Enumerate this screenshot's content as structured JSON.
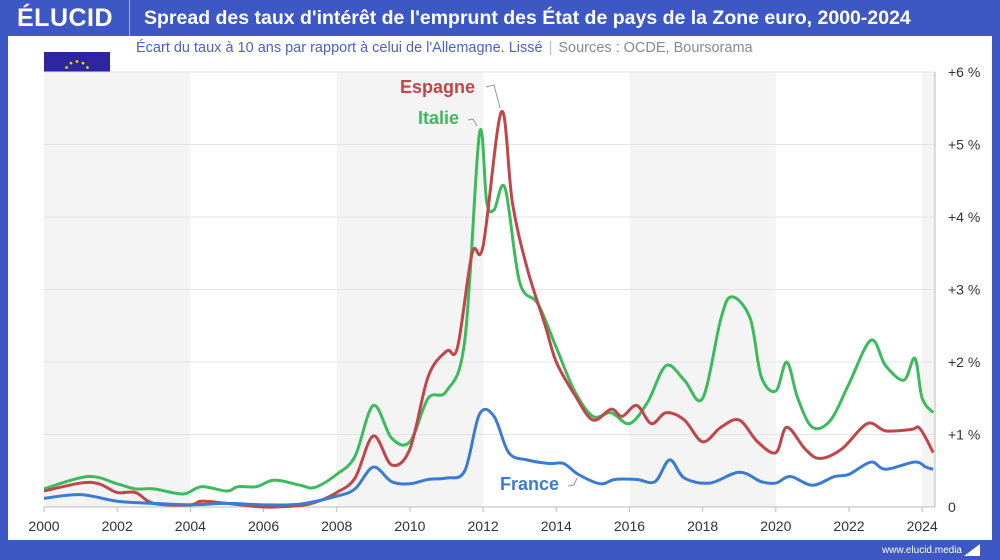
{
  "header": {
    "logo": "ÉLUCID",
    "title": "Spread des taux d'intérêt de l'emprunt des État de pays de la Zone euro, 2000-2024"
  },
  "subtitle": {
    "text": "Écart du taux à 10 ans par rapport à celui de l'Allemagne. Lissé",
    "sources": "Sources : OCDE, Boursorama"
  },
  "footer": {
    "url": "www.elucid.media"
  },
  "flag_icon": "eu-flag",
  "chart_data": {
    "type": "line",
    "xlim": [
      2000,
      2024.35
    ],
    "ylim": [
      0,
      6
    ],
    "x_ticks": [
      "2000",
      "2002",
      "2004",
      "2006",
      "2008",
      "2010",
      "2012",
      "2014",
      "2016",
      "2018",
      "2020",
      "2022",
      "2024"
    ],
    "y_ticks": [
      {
        "v": 0,
        "label": "0"
      },
      {
        "v": 1,
        "label": "+1 %"
      },
      {
        "v": 2,
        "label": "+2 %"
      },
      {
        "v": 3,
        "label": "+3 %"
      },
      {
        "v": 4,
        "label": "+4 %"
      },
      {
        "v": 5,
        "label": "+5 %"
      },
      {
        "v": 6,
        "label": "+6 %"
      }
    ],
    "grid": true,
    "alternating_bands": true,
    "series": [
      {
        "name": "Italie",
        "color": "#3dbb5c",
        "points": [
          [
            2000,
            0.25
          ],
          [
            2001.2,
            0.42
          ],
          [
            2002,
            0.32
          ],
          [
            2002.5,
            0.25
          ],
          [
            2003,
            0.25
          ],
          [
            2003.8,
            0.18
          ],
          [
            2004.3,
            0.28
          ],
          [
            2005,
            0.22
          ],
          [
            2005.3,
            0.28
          ],
          [
            2005.8,
            0.28
          ],
          [
            2006.3,
            0.37
          ],
          [
            2007,
            0.3
          ],
          [
            2007.4,
            0.27
          ],
          [
            2008,
            0.45
          ],
          [
            2008.5,
            0.7
          ],
          [
            2009,
            1.4
          ],
          [
            2009.5,
            0.95
          ],
          [
            2010,
            0.9
          ],
          [
            2010.5,
            1.5
          ],
          [
            2011,
            1.6
          ],
          [
            2011.5,
            2.3
          ],
          [
            2011.9,
            5.15
          ],
          [
            2012.1,
            4.2
          ],
          [
            2012.3,
            4.1
          ],
          [
            2012.6,
            4.4
          ],
          [
            2013,
            3.1
          ],
          [
            2013.5,
            2.8
          ],
          [
            2014,
            2.2
          ],
          [
            2014.5,
            1.6
          ],
          [
            2015,
            1.25
          ],
          [
            2015.5,
            1.3
          ],
          [
            2016,
            1.15
          ],
          [
            2016.5,
            1.45
          ],
          [
            2017,
            1.95
          ],
          [
            2017.5,
            1.75
          ],
          [
            2018,
            1.5
          ],
          [
            2018.5,
            2.6
          ],
          [
            2018.8,
            2.9
          ],
          [
            2019.3,
            2.6
          ],
          [
            2019.6,
            1.8
          ],
          [
            2020,
            1.6
          ],
          [
            2020.3,
            2.0
          ],
          [
            2020.6,
            1.5
          ],
          [
            2021,
            1.1
          ],
          [
            2021.5,
            1.2
          ],
          [
            2022,
            1.7
          ],
          [
            2022.6,
            2.3
          ],
          [
            2023,
            1.95
          ],
          [
            2023.5,
            1.75
          ],
          [
            2023.8,
            2.05
          ],
          [
            2024,
            1.5
          ],
          [
            2024.3,
            1.3
          ]
        ]
      },
      {
        "name": "Espagne",
        "color": "#c0464a",
        "points": [
          [
            2000,
            0.22
          ],
          [
            2001,
            0.33
          ],
          [
            2001.5,
            0.32
          ],
          [
            2002,
            0.2
          ],
          [
            2002.5,
            0.2
          ],
          [
            2003,
            0.05
          ],
          [
            2004,
            0.03
          ],
          [
            2004.3,
            0.08
          ],
          [
            2005,
            0.05
          ],
          [
            2006,
            0.0
          ],
          [
            2007,
            0.02
          ],
          [
            2007.5,
            0.08
          ],
          [
            2008,
            0.2
          ],
          [
            2008.5,
            0.4
          ],
          [
            2009,
            0.98
          ],
          [
            2009.5,
            0.58
          ],
          [
            2010,
            0.8
          ],
          [
            2010.5,
            1.8
          ],
          [
            2011,
            2.15
          ],
          [
            2011.3,
            2.2
          ],
          [
            2011.7,
            3.5
          ],
          [
            2012,
            3.6
          ],
          [
            2012.5,
            5.45
          ],
          [
            2012.8,
            4.2
          ],
          [
            2013.2,
            3.3
          ],
          [
            2013.7,
            2.5
          ],
          [
            2014,
            2.0
          ],
          [
            2014.5,
            1.55
          ],
          [
            2015,
            1.2
          ],
          [
            2015.5,
            1.35
          ],
          [
            2015.8,
            1.25
          ],
          [
            2016.2,
            1.4
          ],
          [
            2016.6,
            1.15
          ],
          [
            2017,
            1.3
          ],
          [
            2017.5,
            1.2
          ],
          [
            2018,
            0.9
          ],
          [
            2018.5,
            1.1
          ],
          [
            2019,
            1.2
          ],
          [
            2019.5,
            0.9
          ],
          [
            2020,
            0.75
          ],
          [
            2020.3,
            1.1
          ],
          [
            2020.8,
            0.8
          ],
          [
            2021.2,
            0.67
          ],
          [
            2021.8,
            0.8
          ],
          [
            2022.5,
            1.15
          ],
          [
            2023,
            1.05
          ],
          [
            2023.7,
            1.07
          ],
          [
            2023.9,
            1.1
          ],
          [
            2024.1,
            0.95
          ],
          [
            2024.3,
            0.75
          ]
        ]
      },
      {
        "name": "France",
        "color": "#3b7bd0",
        "points": [
          [
            2000,
            0.12
          ],
          [
            2001,
            0.17
          ],
          [
            2002,
            0.08
          ],
          [
            2003,
            0.05
          ],
          [
            2004,
            0.03
          ],
          [
            2005,
            0.05
          ],
          [
            2006,
            0.03
          ],
          [
            2007,
            0.04
          ],
          [
            2008,
            0.15
          ],
          [
            2008.5,
            0.25
          ],
          [
            2009,
            0.55
          ],
          [
            2009.5,
            0.35
          ],
          [
            2010,
            0.32
          ],
          [
            2010.5,
            0.38
          ],
          [
            2011,
            0.4
          ],
          [
            2011.5,
            0.5
          ],
          [
            2011.9,
            1.28
          ],
          [
            2012.3,
            1.25
          ],
          [
            2012.7,
            0.75
          ],
          [
            2013.2,
            0.65
          ],
          [
            2013.8,
            0.6
          ],
          [
            2014.2,
            0.6
          ],
          [
            2014.6,
            0.45
          ],
          [
            2015.2,
            0.32
          ],
          [
            2015.6,
            0.38
          ],
          [
            2016.2,
            0.38
          ],
          [
            2016.7,
            0.35
          ],
          [
            2017.1,
            0.65
          ],
          [
            2017.5,
            0.4
          ],
          [
            2018.2,
            0.33
          ],
          [
            2019,
            0.48
          ],
          [
            2019.6,
            0.35
          ],
          [
            2020,
            0.33
          ],
          [
            2020.4,
            0.42
          ],
          [
            2021,
            0.3
          ],
          [
            2021.6,
            0.42
          ],
          [
            2022,
            0.45
          ],
          [
            2022.6,
            0.62
          ],
          [
            2023,
            0.52
          ],
          [
            2023.8,
            0.62
          ],
          [
            2024.1,
            0.55
          ],
          [
            2024.3,
            0.52
          ]
        ]
      }
    ]
  }
}
